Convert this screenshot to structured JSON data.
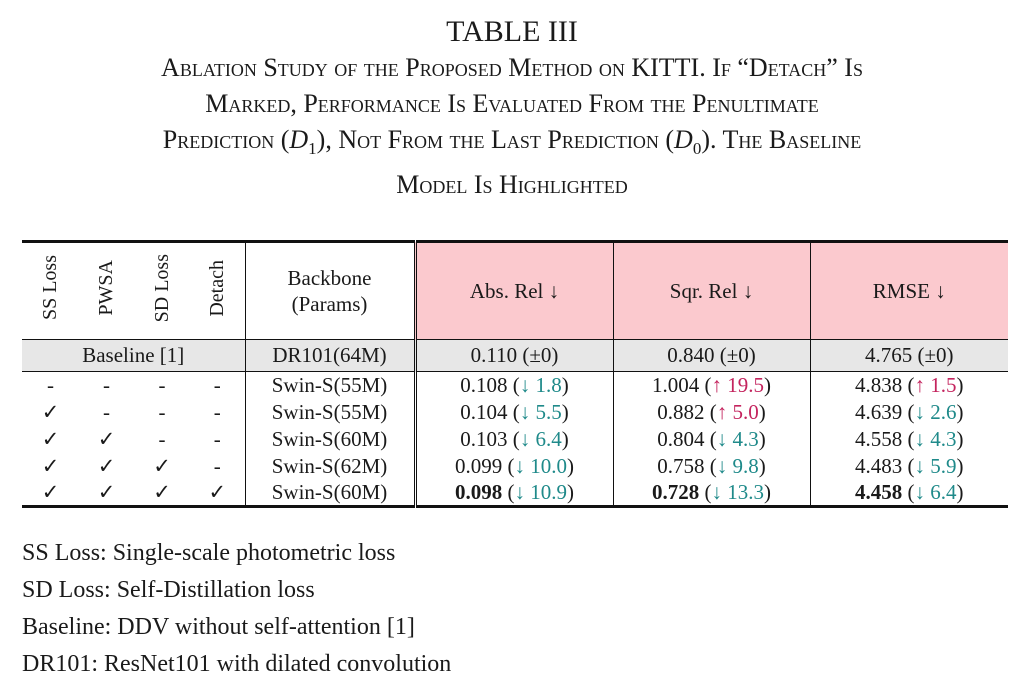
{
  "caption": {
    "title": "TABLE III",
    "line1": "Ablation Study of the Proposed Method on KITTI. If “Detach” Is",
    "line2": "Marked, Performance Is Evaluated From the Penultimate",
    "line3_a": "Prediction (",
    "line3_var1": "D",
    "line3_sub1": "1",
    "line3_b": "), Not From the Last Prediction (",
    "line3_var2": "D",
    "line3_sub2": "0",
    "line3_c": "). The Baseline",
    "line4": "Model Is Highlighted"
  },
  "table": {
    "headers": {
      "ss_loss": "SS Loss",
      "pwsa": "PWSA",
      "sd_loss": "SD Loss",
      "detach": "Detach",
      "backbone_line1": "Backbone",
      "backbone_line2": "(Params)",
      "abs_rel": "Abs. Rel ↓",
      "sqr_rel": "Sqr. Rel ↓",
      "rmse": "RMSE ↓"
    },
    "baseline": {
      "label": "Baseline [1]",
      "backbone": "DR101(64M)",
      "abs_rel": "0.110 (±0)",
      "sqr_rel": "0.840 (±0)",
      "rmse": "4.765 (±0)"
    },
    "rows": [
      {
        "ss": "-",
        "pwsa": "-",
        "sd": "-",
        "detach": "-",
        "backbone": "Swin-S(55M)",
        "abs_val": "0.108",
        "abs_delta": "↓ 1.8",
        "abs_dir": "down",
        "sqr_val": "1.004",
        "sqr_delta": "↑ 19.5",
        "sqr_dir": "up",
        "rmse_val": "4.838",
        "rmse_delta": "↑ 1.5",
        "rmse_dir": "up",
        "bold": false
      },
      {
        "ss": "✓",
        "pwsa": "-",
        "sd": "-",
        "detach": "-",
        "backbone": "Swin-S(55M)",
        "abs_val": "0.104",
        "abs_delta": "↓ 5.5",
        "abs_dir": "down",
        "sqr_val": "0.882",
        "sqr_delta": "↑ 5.0",
        "sqr_dir": "up",
        "rmse_val": "4.639",
        "rmse_delta": "↓ 2.6",
        "rmse_dir": "down",
        "bold": false
      },
      {
        "ss": "✓",
        "pwsa": "✓",
        "sd": "-",
        "detach": "-",
        "backbone": "Swin-S(60M)",
        "abs_val": "0.103",
        "abs_delta": "↓ 6.4",
        "abs_dir": "down",
        "sqr_val": "0.804",
        "sqr_delta": "↓ 4.3",
        "sqr_dir": "down",
        "rmse_val": "4.558",
        "rmse_delta": "↓ 4.3",
        "rmse_dir": "down",
        "bold": false
      },
      {
        "ss": "✓",
        "pwsa": "✓",
        "sd": "✓",
        "detach": "-",
        "backbone": "Swin-S(62M)",
        "abs_val": "0.099",
        "abs_delta": "↓ 10.0",
        "abs_dir": "down",
        "sqr_val": "0.758",
        "sqr_delta": "↓ 9.8",
        "sqr_dir": "down",
        "rmse_val": "4.483",
        "rmse_delta": "↓ 5.9",
        "rmse_dir": "down",
        "bold": false
      },
      {
        "ss": "✓",
        "pwsa": "✓",
        "sd": "✓",
        "detach": "✓",
        "backbone": "Swin-S(60M)",
        "abs_val": "0.098",
        "abs_delta": "↓ 10.9",
        "abs_dir": "down",
        "sqr_val": "0.728",
        "sqr_delta": "↓ 13.3",
        "sqr_dir": "down",
        "rmse_val": "4.458",
        "rmse_delta": "↓ 6.4",
        "rmse_dir": "down",
        "bold": true
      }
    ]
  },
  "footnotes": [
    "SS Loss: Single-scale photometric loss",
    "SD Loss: Self-Distillation loss",
    "Baseline: DDV without self-attention [1]",
    "DR101: ResNet101 with dilated convolution"
  ],
  "colors": {
    "highlight_header": "#fbc9ce",
    "baseline_row": "#e7e7e7",
    "decrease": "#1f8a8a",
    "increase": "#c4245e"
  }
}
